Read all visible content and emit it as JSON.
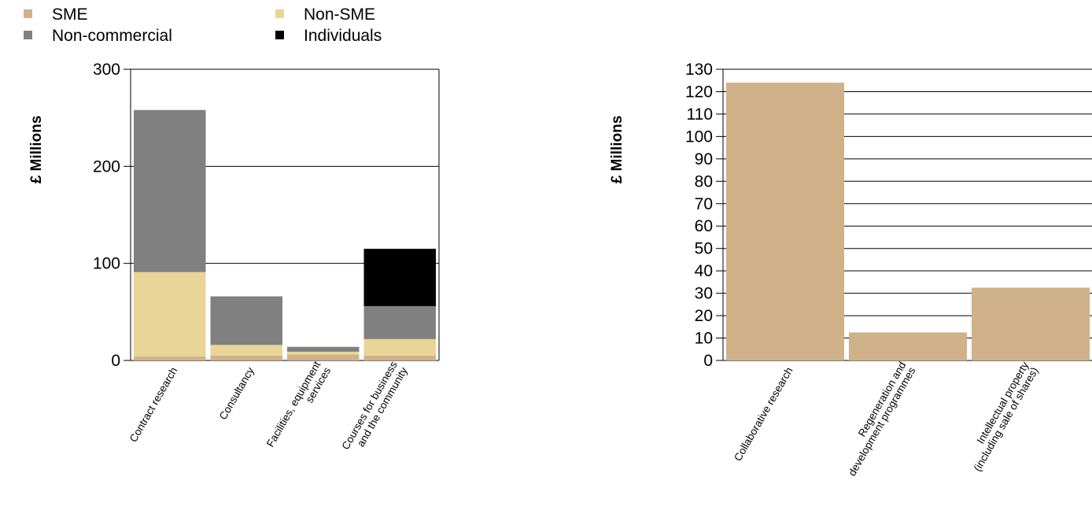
{
  "legend": [
    {
      "label": "SME",
      "color": "#cfb18a"
    },
    {
      "label": "Non-SME",
      "color": "#e8d597"
    },
    {
      "label": "Non-commercial",
      "color": "#808080"
    },
    {
      "label": "Individuals",
      "color": "#000000"
    }
  ],
  "chart_data": [
    {
      "type": "bar",
      "stacked": true,
      "ylabel": "£ Millions",
      "ylim": [
        0,
        300
      ],
      "yticks": [
        0,
        100,
        200,
        300
      ],
      "grid": true,
      "legend_position": "top-left",
      "categories": [
        [
          "Contract research"
        ],
        [
          "Consultancy"
        ],
        [
          "Facilities, equipment",
          "services"
        ],
        [
          "Courses for business",
          "and the community"
        ]
      ],
      "series": [
        {
          "name": "SME",
          "color": "#cfb18a",
          "values": [
            4,
            5,
            6,
            5
          ]
        },
        {
          "name": "Non-SME",
          "color": "#e8d597",
          "values": [
            87,
            11,
            3,
            17
          ]
        },
        {
          "name": "Non-commercial",
          "color": "#808080",
          "values": [
            167,
            50,
            5,
            34
          ]
        },
        {
          "name": "Individuals",
          "color": "#000000",
          "values": [
            0,
            0,
            0,
            59
          ]
        }
      ]
    },
    {
      "type": "bar",
      "ylabel": "£ Millions",
      "ylim": [
        0,
        130
      ],
      "yticks": [
        0,
        10,
        20,
        30,
        40,
        50,
        60,
        70,
        80,
        90,
        100,
        110,
        120,
        130
      ],
      "grid": true,
      "categories": [
        [
          "Collaborative research"
        ],
        [
          "Regeneration and",
          "development programmes"
        ],
        [
          "Intellectual property",
          "(including sale of shares)"
        ]
      ],
      "series": [
        {
          "color": "#cfb18a",
          "values": [
            124,
            12.5,
            32.5
          ]
        }
      ]
    }
  ]
}
